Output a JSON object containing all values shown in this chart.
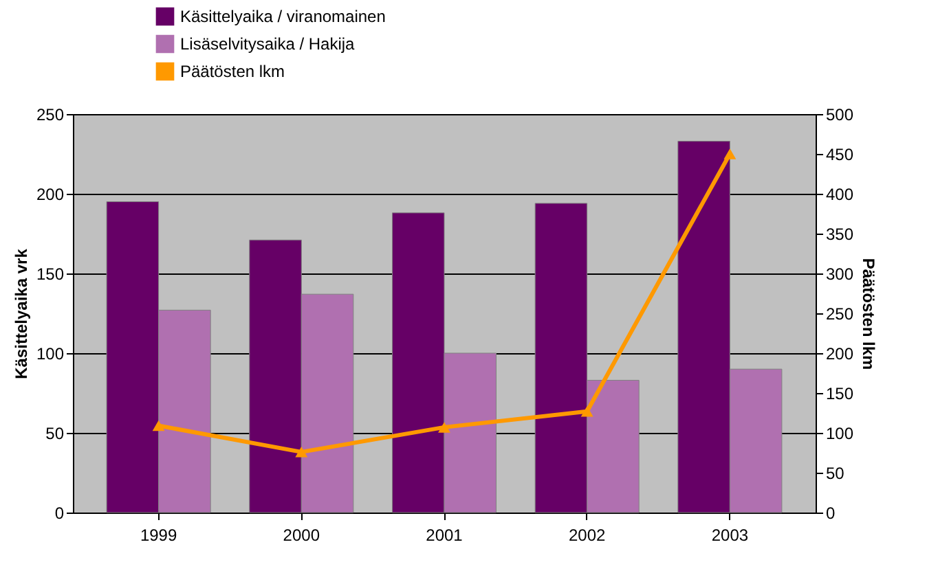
{
  "chart_data": {
    "type": "bar",
    "categories": [
      "1999",
      "2000",
      "2001",
      "2002",
      "2003"
    ],
    "series": [
      {
        "name": "Käsittelyaika / viranomainen",
        "color": "#660066",
        "values": [
          195,
          171,
          188,
          194,
          233
        ]
      },
      {
        "name": "Lisäselvitysaika / Hakija",
        "color": "#b070b0",
        "values": [
          127,
          137,
          100,
          83,
          90
        ]
      },
      {
        "name": "Päätösten lkm",
        "type": "line",
        "axis": "y2",
        "color": "#ff9900",
        "marker": "triangle",
        "values": [
          109,
          76,
          107,
          127,
          450
        ]
      }
    ],
    "ylabel": "Käsittelyaika vrk",
    "y2label": "Päätösten lkm",
    "ylim": [
      0,
      250
    ],
    "yticks": [
      0,
      50,
      100,
      150,
      200,
      250
    ],
    "y2lim": [
      0,
      500
    ],
    "y2ticks": [
      0,
      50,
      100,
      150,
      200,
      250,
      300,
      350,
      400,
      450,
      500
    ],
    "grid": "y",
    "legend": "top left"
  }
}
